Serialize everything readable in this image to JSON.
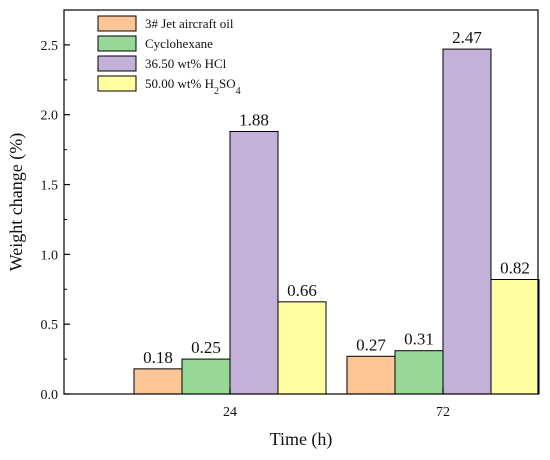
{
  "chart_data": {
    "type": "bar",
    "categories": [
      "24",
      "72"
    ],
    "series": [
      {
        "name": "3# Jet aircraft oil",
        "values": [
          0.18,
          0.27
        ],
        "color": "#fbc596"
      },
      {
        "name": "Cyclohexane",
        "values": [
          0.25,
          0.31
        ],
        "color": "#97d897"
      },
      {
        "name": "36.50 wt% HCl",
        "values": [
          1.88,
          2.47
        ],
        "color": "#c3b1da"
      },
      {
        "name": "50.00 wt% H2SO4",
        "values": [
          0.66,
          0.82
        ],
        "color": "#fefea0"
      }
    ],
    "data_labels": [
      [
        "0.18",
        "0.25",
        "1.88",
        "0.66"
      ],
      [
        "0.27",
        "0.31",
        "2.47",
        "0.82"
      ]
    ],
    "xlabel": "Time (h)",
    "ylabel": "Weight change (%)",
    "ylim": [
      0,
      2.75
    ],
    "yticks": [
      "0.0",
      "0.5",
      "1.0",
      "1.5",
      "2.0",
      "2.5"
    ],
    "legend_position": "top-left",
    "grid": false
  }
}
